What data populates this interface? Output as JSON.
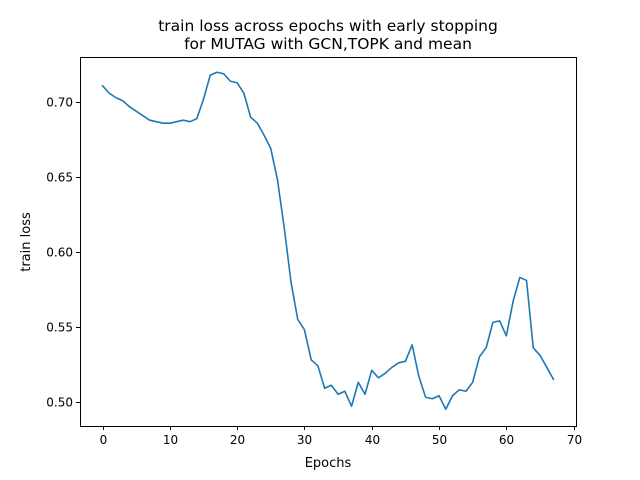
{
  "chart_data": {
    "type": "line",
    "title_lines": [
      "train loss across epochs with early stopping",
      "for MUTAG with GCN,TOPK and mean"
    ],
    "xlabel": "Epochs",
    "ylabel": "train loss",
    "xlim": [
      -3.35,
      70.35
    ],
    "ylim": [
      0.4838,
      0.7302
    ],
    "xticks": [
      0,
      10,
      20,
      30,
      40,
      50,
      60,
      70
    ],
    "xtick_labels": [
      "0",
      "10",
      "20",
      "30",
      "40",
      "50",
      "60",
      "70"
    ],
    "yticks": [
      0.5,
      0.55,
      0.6,
      0.65,
      0.7
    ],
    "ytick_labels": [
      "0.50",
      "0.55",
      "0.60",
      "0.65",
      "0.70"
    ],
    "grid": false,
    "legend": "none",
    "series": [
      {
        "color": "#1f77b4",
        "x": [
          0,
          1,
          2,
          3,
          4,
          5,
          6,
          7,
          8,
          9,
          10,
          11,
          12,
          13,
          14,
          15,
          16,
          17,
          18,
          19,
          20,
          21,
          22,
          23,
          24,
          25,
          26,
          27,
          28,
          29,
          30,
          31,
          32,
          33,
          34,
          35,
          36,
          37,
          38,
          39,
          40,
          41,
          42,
          43,
          44,
          45,
          46,
          47,
          48,
          49,
          50,
          51,
          52,
          53,
          54,
          55,
          56,
          57,
          58,
          59,
          60,
          61,
          62,
          63,
          64,
          65,
          66,
          67
        ],
        "values": [
          0.711,
          0.706,
          0.703,
          0.701,
          0.697,
          0.694,
          0.691,
          0.688,
          0.687,
          0.686,
          0.686,
          0.687,
          0.688,
          0.687,
          0.689,
          0.702,
          0.718,
          0.72,
          0.719,
          0.714,
          0.713,
          0.706,
          0.69,
          0.686,
          0.678,
          0.669,
          0.648,
          0.616,
          0.58,
          0.555,
          0.548,
          0.528,
          0.524,
          0.509,
          0.511,
          0.505,
          0.507,
          0.497,
          0.513,
          0.505,
          0.521,
          0.516,
          0.519,
          0.523,
          0.526,
          0.527,
          0.538,
          0.517,
          0.503,
          0.502,
          0.504,
          0.495,
          0.504,
          0.508,
          0.507,
          0.513,
          0.53,
          0.536,
          0.553,
          0.554,
          0.544,
          0.567,
          0.583,
          0.581,
          0.536,
          0.531,
          0.523,
          0.515
        ]
      }
    ]
  }
}
